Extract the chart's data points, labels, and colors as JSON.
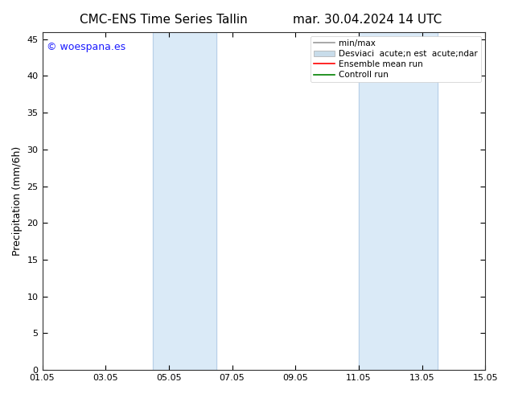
{
  "title_left": "CMC-ENS Time Series Tallin",
  "title_right": "mar. 30.04.2024 14 UTC",
  "ylabel": "Precipitation (mm/6h)",
  "xlim": [
    0,
    14
  ],
  "ylim": [
    0,
    46
  ],
  "yticks": [
    0,
    5,
    10,
    15,
    20,
    25,
    30,
    35,
    40,
    45
  ],
  "xticks": [
    0,
    2,
    4,
    6,
    8,
    10,
    12,
    14
  ],
  "xtick_labels": [
    "01.05",
    "03.05",
    "05.05",
    "07.05",
    "09.05",
    "11.05",
    "13.05",
    "15.05"
  ],
  "shaded_regions": [
    {
      "xmin": 3.5,
      "xmax": 4.2,
      "color": "#daeaf7"
    },
    {
      "xmin": 4.2,
      "xmax": 5.5,
      "color": "#daeaf7"
    },
    {
      "xmin": 10.0,
      "xmax": 10.8,
      "color": "#daeaf7"
    },
    {
      "xmin": 10.8,
      "xmax": 12.5,
      "color": "#daeaf7"
    }
  ],
  "shade_color": "#daeaf7",
  "watermark_text": "© woespana.es",
  "watermark_color": "#1a1aff",
  "legend_line1": "min/max",
  "legend_line2": "Desviaci  acute;n est  acute;ndar",
  "legend_line3": "Ensemble mean run",
  "legend_line4": "Controll run",
  "legend_color1": "#999999",
  "legend_color2": "#c8dcea",
  "legend_color3": "#ff0000",
  "legend_color4": "#008000",
  "bg_color": "#ffffff",
  "tick_fontsize": 8,
  "label_fontsize": 9,
  "title_fontsize": 11,
  "top_y_label": "45"
}
